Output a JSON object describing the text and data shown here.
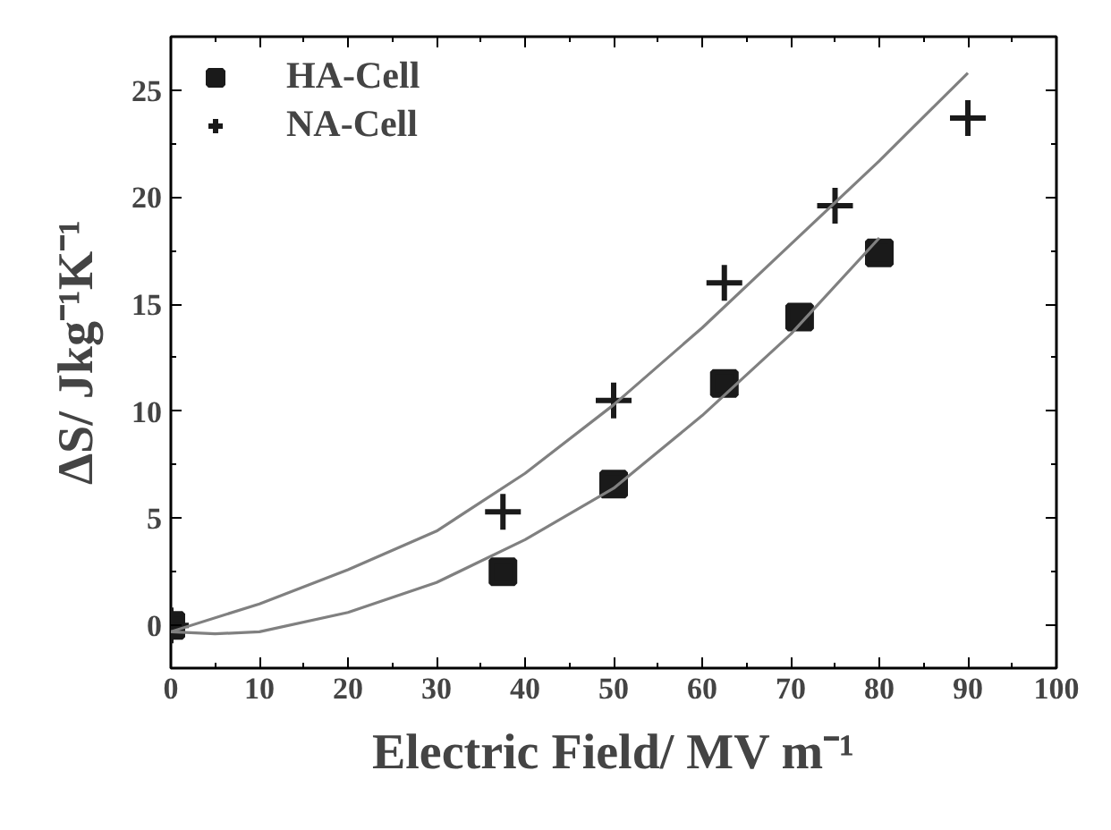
{
  "chart_data": {
    "type": "scatter",
    "xlabel": "Electric Field/ MV m⁻¹",
    "ylabel": "ΔS/ Jkg⁻¹K⁻¹",
    "xlim": [
      0,
      100
    ],
    "xticks": [
      0,
      10,
      20,
      30,
      40,
      50,
      60,
      70,
      80,
      90,
      100
    ],
    "ylim": [
      -2,
      27.5
    ],
    "yticks": [
      0,
      5,
      10,
      15,
      20,
      25
    ],
    "grid": false,
    "legend": "top left",
    "series": [
      {
        "name": "HA-Cell",
        "marker": "square",
        "color": "#1a1a1a",
        "x": [
          0,
          37.5,
          50,
          62.5,
          71,
          80
        ],
        "values": [
          0,
          2.5,
          6.6,
          11.3,
          14.4,
          17.4
        ]
      },
      {
        "name": "NA-Cell",
        "marker": "cross",
        "color": "#1a1a1a",
        "x": [
          0,
          37.5,
          50,
          62.5,
          75,
          90
        ],
        "values": [
          0,
          5.3,
          10.5,
          16.0,
          19.6,
          23.7
        ]
      },
      {
        "type": "line",
        "color": "#808080",
        "x": [
          0,
          5,
          10,
          20,
          30,
          40,
          50,
          60,
          70,
          80
        ],
        "values": [
          -0.3,
          -0.4,
          -0.3,
          0.6,
          2.0,
          4.0,
          6.4,
          9.8,
          13.6,
          18.1
        ]
      },
      {
        "type": "line",
        "color": "#808080",
        "x": [
          0,
          10,
          20,
          30,
          40,
          50,
          60,
          70,
          80,
          90
        ],
        "values": [
          -0.3,
          1.0,
          2.6,
          4.4,
          7.1,
          10.3,
          13.9,
          17.8,
          21.7,
          25.8
        ]
      }
    ]
  }
}
